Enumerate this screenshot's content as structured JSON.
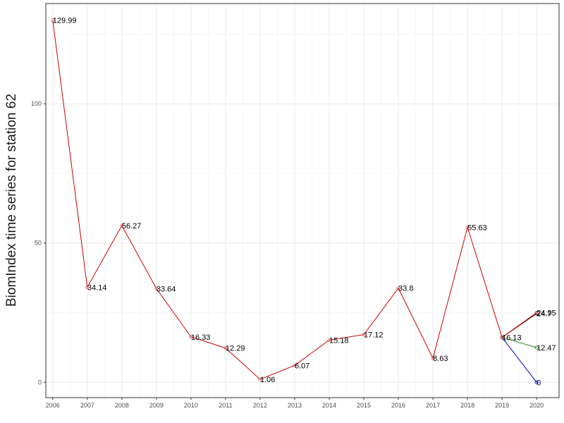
{
  "chart_data": {
    "type": "line",
    "title": "",
    "xlabel": "",
    "ylabel": "BiomIndex time series for station 62",
    "x": [
      2006,
      2007,
      2008,
      2009,
      2010,
      2011,
      2012,
      2013,
      2014,
      2015,
      2016,
      2017,
      2018,
      2019,
      2020
    ],
    "x_tick_labels": [
      "2006",
      "2007",
      "2008",
      "2009",
      "2010",
      "2011",
      "2012",
      "2013",
      "2014",
      "2015",
      "2016",
      "2017",
      "2018",
      "2019",
      "2020"
    ],
    "y_ticks": [
      0,
      50,
      100
    ],
    "y_tick_labels": [
      "0",
      "50",
      "100"
    ],
    "xlim": [
      2005.8,
      2020.65
    ],
    "ylim": [
      -5.5,
      136
    ],
    "grid": true,
    "legend": "none",
    "series": [
      {
        "color": "#cc0000",
        "points": [
          {
            "x": 2006,
            "y": 129.99,
            "label": "129.99"
          },
          {
            "x": 2007,
            "y": 34.14,
            "label": "34.14"
          },
          {
            "x": 2008,
            "y": 56.27,
            "label": "56.27"
          },
          {
            "x": 2009,
            "y": 33.64,
            "label": "33.64"
          },
          {
            "x": 2010,
            "y": 16.33,
            "label": "16.33"
          },
          {
            "x": 2011,
            "y": 12.29,
            "label": "12.29"
          },
          {
            "x": 2012,
            "y": 1.06,
            "label": "1.06"
          },
          {
            "x": 2013,
            "y": 6.07,
            "label": "6.07"
          },
          {
            "x": 2014,
            "y": 15.18,
            "label": "15.18"
          },
          {
            "x": 2015,
            "y": 17.12,
            "label": "17.12"
          },
          {
            "x": 2016,
            "y": 33.8,
            "label": "33.8"
          },
          {
            "x": 2017,
            "y": 8.63,
            "label": "8.63"
          },
          {
            "x": 2018,
            "y": 55.63,
            "label": "55.63"
          },
          {
            "x": 2019,
            "y": 16.13,
            "label": "16.13"
          },
          {
            "x": 2020,
            "y": 24.95,
            "label": "24.95"
          }
        ]
      },
      {
        "color": "#000000",
        "points": [
          {
            "x": 2019,
            "y": 16.13,
            "label": ""
          },
          {
            "x": 2020,
            "y": 24.7,
            "label": "24.7"
          }
        ]
      },
      {
        "color": "#228b22",
        "points": [
          {
            "x": 2019,
            "y": 16.13,
            "label": ""
          },
          {
            "x": 2020,
            "y": 12.47,
            "label": "12.47"
          }
        ]
      },
      {
        "color": "#0000cc",
        "points": [
          {
            "x": 2019,
            "y": 16.13,
            "label": ""
          },
          {
            "x": 2020,
            "y": 0,
            "label": "0"
          }
        ]
      }
    ]
  }
}
